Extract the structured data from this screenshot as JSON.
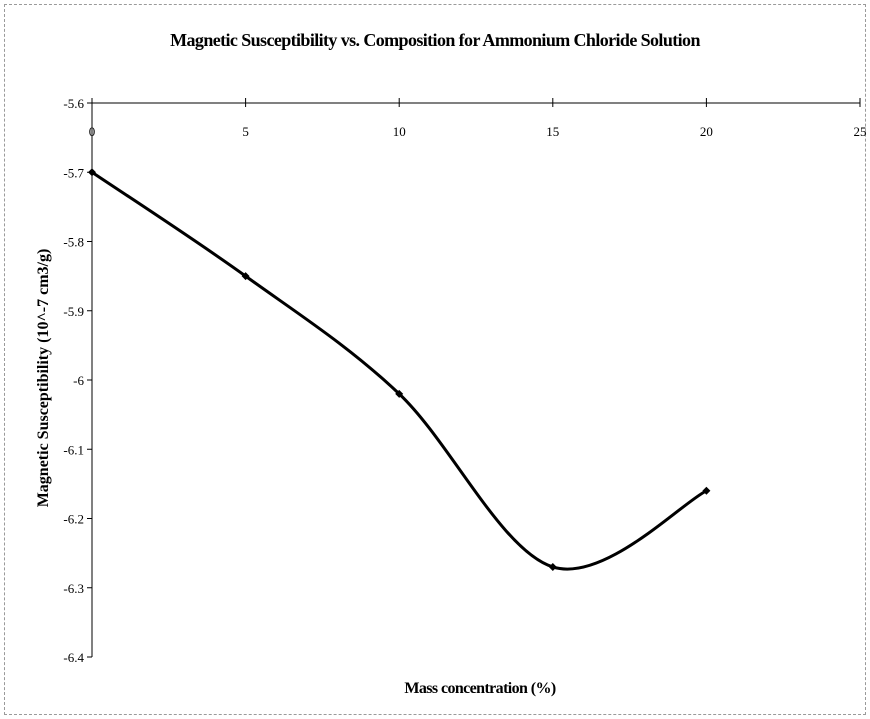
{
  "chart_data": {
    "type": "line",
    "title": "Magnetic Susceptibility vs. Composition for Ammonium Chloride Solution",
    "xlabel": "Mass concentration (%)",
    "ylabel": "Magnetic Susceptibility (10^-7 cm3/g)",
    "x": [
      0,
      5,
      10,
      15,
      20
    ],
    "series": [
      {
        "values": [
          -5.7,
          -5.85,
          -6.02,
          -6.27,
          -6.16
        ]
      }
    ],
    "xlim": [
      0,
      25
    ],
    "ylim": [
      -6.4,
      -5.6
    ],
    "x_ticks": [
      "0",
      "5",
      "10",
      "15",
      "20",
      "25"
    ],
    "y_ticks": [
      "-5.6",
      "-5.7",
      "-5.8",
      "-5.9",
      "-6",
      "-6.1",
      "-6.2",
      "-6.3",
      "-6.4"
    ],
    "x_axis_position": "top",
    "smoothed": true,
    "grid": false,
    "legend": "none",
    "line_color": "#000000"
  }
}
